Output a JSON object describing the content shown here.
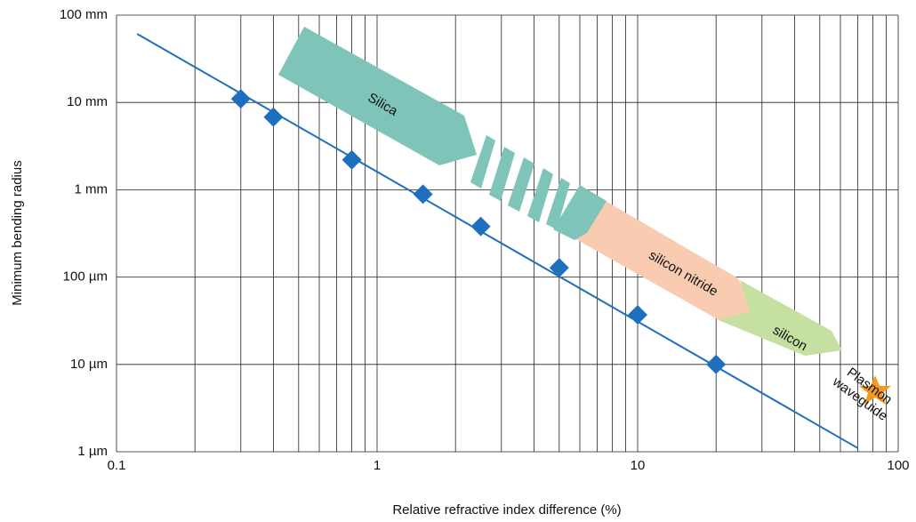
{
  "chart_data": {
    "type": "scatter",
    "x_label": "Relative refractive index difference (%)",
    "y_label": "Minimum bending radius",
    "log_x": true,
    "log_y": true,
    "grid": true,
    "xlim": [
      0.1,
      100
    ],
    "xticks": [
      0.1,
      1,
      10,
      100
    ],
    "x_minor_ticks": [
      0.2,
      0.3,
      0.4,
      0.5,
      0.6,
      0.7,
      0.8,
      0.9,
      2,
      3,
      4,
      5,
      6,
      7,
      8,
      9,
      20,
      30,
      40,
      50,
      60,
      70,
      80,
      90
    ],
    "ylim": [
      1,
      100000
    ],
    "yticks": [
      {
        "value": 1,
        "label": "1 µm"
      },
      {
        "value": 10,
        "label": "10 µm"
      },
      {
        "value": 100,
        "label": "100 µm"
      },
      {
        "value": 1000,
        "label": "1 mm"
      },
      {
        "value": 10000,
        "label": "10 mm"
      },
      {
        "value": 100000,
        "label": "100 mm"
      }
    ],
    "series": [
      {
        "kind": "points",
        "color": "#1f6fbf",
        "x": [
          0.3,
          0.4,
          0.8,
          1.5,
          2.5,
          5,
          10,
          20
        ],
        "values": [
          11000,
          6800,
          2200,
          890,
          380,
          128,
          37,
          10
        ]
      },
      {
        "kind": "line",
        "color": "#1f6fbf",
        "x": [
          0.12,
          70
        ],
        "values": [
          61000,
          1.1
        ]
      }
    ],
    "annotations": [
      {
        "lines": [
          "Silica"
        ]
      },
      {
        "lines": [
          "silicon nitride"
        ]
      },
      {
        "lines": [
          "silicon"
        ]
      },
      {
        "lines": [
          "Plasmon",
          "waveguide"
        ]
      }
    ]
  }
}
